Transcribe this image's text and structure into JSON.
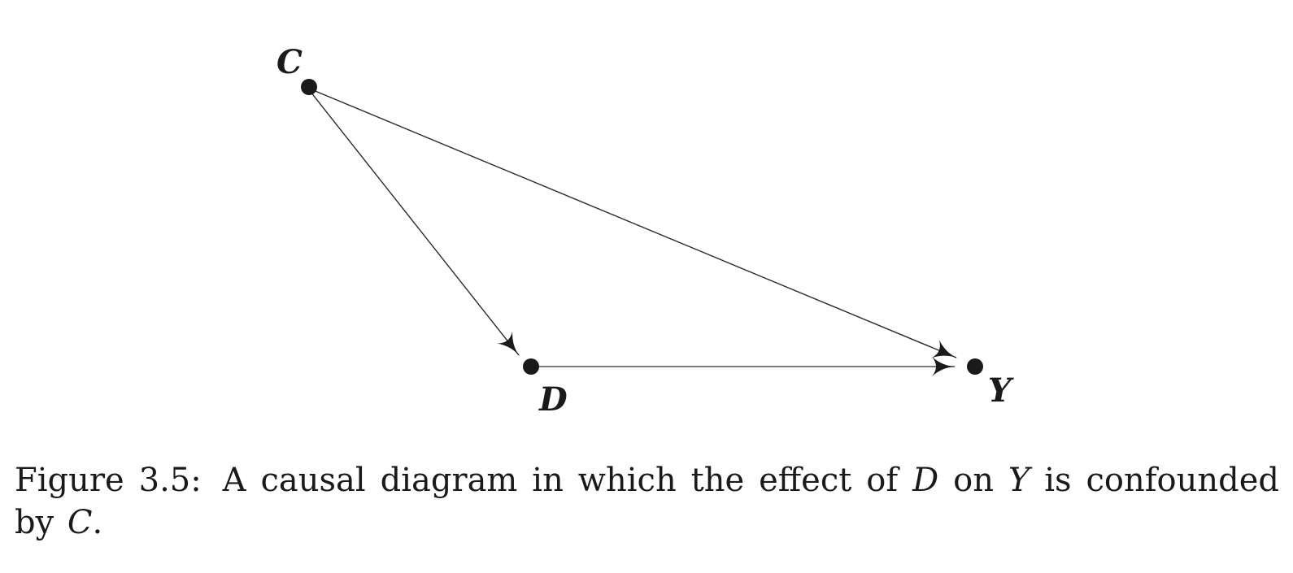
{
  "diagram": {
    "nodes": [
      {
        "id": "C",
        "label": "C"
      },
      {
        "id": "D",
        "label": "D"
      },
      {
        "id": "Y",
        "label": "Y"
      }
    ],
    "edges": [
      {
        "from": "C",
        "to": "D"
      },
      {
        "from": "C",
        "to": "Y"
      },
      {
        "from": "D",
        "to": "Y"
      }
    ]
  },
  "caption": {
    "figure_number": "Figure 3.5:",
    "part1": "A causal diagram in which the effect of",
    "var1": "D",
    "part2": "on",
    "var2": "Y",
    "part3": "is confounded by",
    "var3": "C",
    "end": "."
  }
}
